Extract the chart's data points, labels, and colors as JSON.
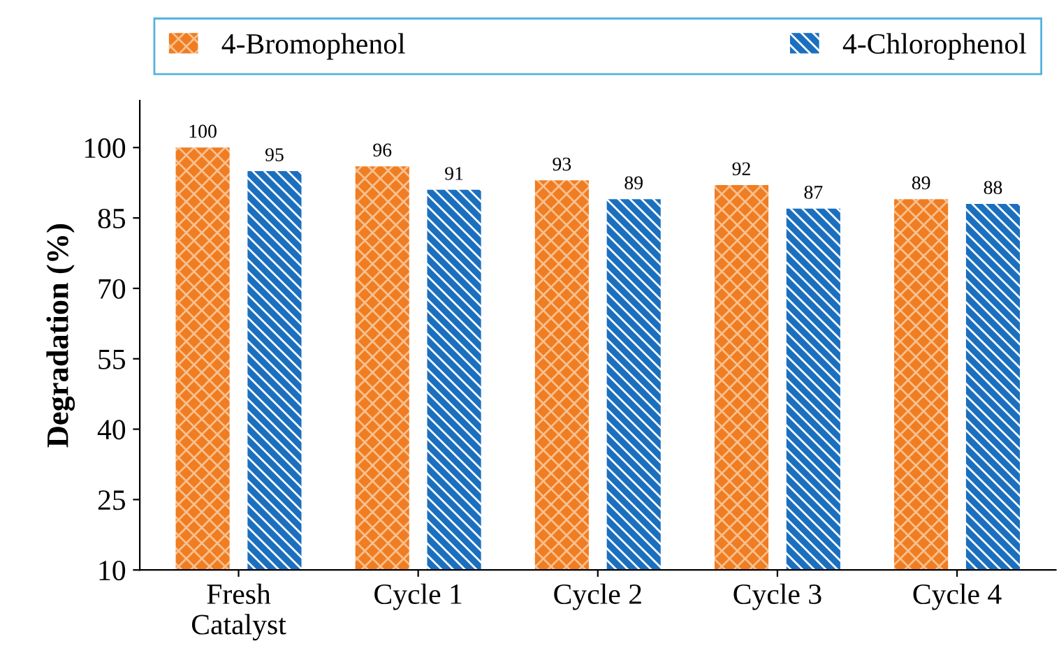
{
  "chart_data": {
    "type": "bar",
    "ylabel": "Degradation (%)",
    "categories": [
      "Fresh\nCatalyst",
      "Cycle 1",
      "Cycle 2",
      "Cycle 3",
      "Cycle 4"
    ],
    "series": [
      {
        "name": "4-Bromophenol",
        "color": "#f07d22",
        "values": [
          100,
          96,
          93,
          92,
          89
        ]
      },
      {
        "name": "4-Chlorophenol",
        "color": "#1b6fbf",
        "values": [
          95,
          91,
          89,
          87,
          88
        ]
      }
    ],
    "ylim": [
      10,
      110
    ],
    "yticks": [
      10,
      25,
      40,
      55,
      70,
      85,
      100
    ],
    "grid": false,
    "legend": "top",
    "data_labels": true
  }
}
